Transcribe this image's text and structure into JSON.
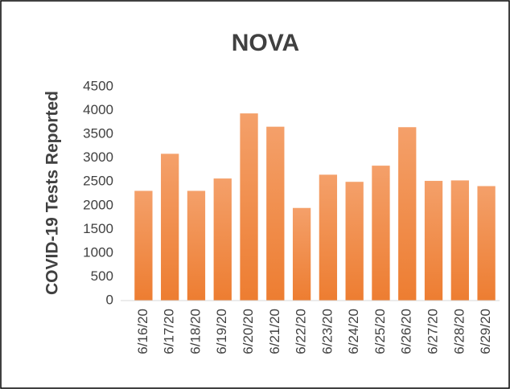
{
  "chart_data": {
    "type": "bar",
    "title": "NOVA",
    "y_label": "COVID-19 Tests Reported",
    "categories": [
      "6/16/20",
      "6/17/20",
      "6/18/20",
      "6/19/20",
      "6/20/20",
      "6/21/20",
      "6/22/20",
      "6/23/20",
      "6/24/20",
      "6/25/20",
      "6/26/20",
      "6/27/20",
      "6/28/20",
      "6/29/20"
    ],
    "values": [
      2310,
      3090,
      2310,
      2570,
      3940,
      3660,
      1950,
      2650,
      2500,
      2840,
      3650,
      2520,
      2530,
      2410
    ],
    "color": "#ed7d31",
    "ylim": [
      0,
      4500
    ],
    "yticks": [
      0,
      500,
      1000,
      1500,
      2000,
      2500,
      3000,
      3500,
      4000,
      4500
    ],
    "grid": false
  }
}
